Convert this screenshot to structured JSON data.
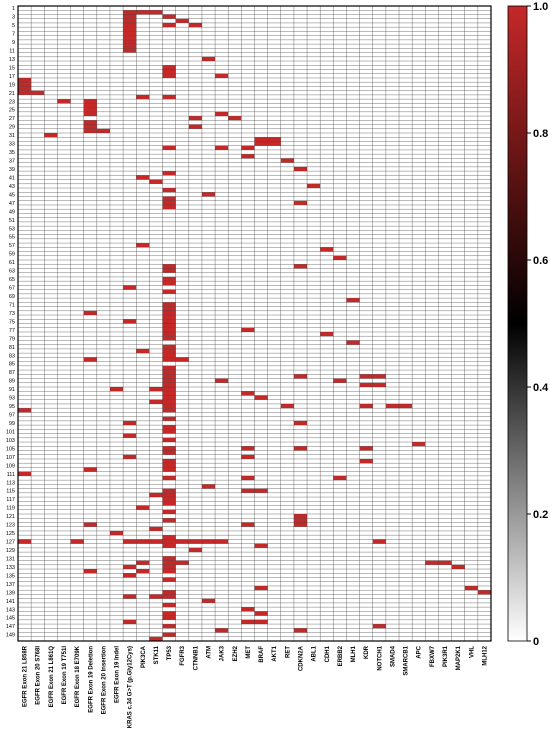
{
  "chart_data": {
    "type": "heatmap",
    "title": "",
    "xlabel": "",
    "ylabel": "",
    "columns": [
      "EGFR Exon 21 L858R",
      "EGFR Exon 20 S768I",
      "EGFR Exon 21 L861Q",
      "EGFR Exon 19 T751I",
      "EGFR Exon 18 E709K",
      "EGFR Exon 19 Deletion",
      "EGFR Exon 20 Insertion",
      "EGFR Exon 19 Indel",
      "KRAS c.34 G>T (p.Gly12Cys)",
      "PIK3CA",
      "STK11",
      "TP53",
      "FGFR3",
      "CTNNB1",
      "ATM",
      "JAK3",
      "EZH2",
      "MET",
      "BRAF",
      "AKT1",
      "RET",
      "CDKN2A",
      "ABL1",
      "CDH1",
      "ERBB2",
      "MLH1",
      "KDR",
      "NOTCH1",
      "SMAD4",
      "SMARCB1",
      "APC",
      "FBXW7",
      "PIK3R1",
      "MAP2K1",
      "VHL",
      "MLH12"
    ],
    "row_count": 150,
    "y_tick_step": 2,
    "value_range": [
      0,
      1
    ],
    "colorbar": {
      "ticks": [
        0,
        0.2,
        0.4,
        0.6,
        0.8,
        1.0
      ],
      "tick_labels": [
        "0",
        "0.2",
        "0.4",
        "0.6",
        "0.8",
        "1.0"
      ],
      "colors": [
        "#ffffff",
        "#000000",
        "#c62828"
      ]
    },
    "legend_position": "right",
    "grid": true,
    "mutations": [
      [
        1,
        8
      ],
      [
        1,
        9
      ],
      [
        1,
        10
      ],
      [
        2,
        8
      ],
      [
        2,
        11
      ],
      [
        3,
        8
      ],
      [
        3,
        12
      ],
      [
        4,
        8
      ],
      [
        4,
        11
      ],
      [
        4,
        13
      ],
      [
        5,
        8
      ],
      [
        6,
        8
      ],
      [
        7,
        8
      ],
      [
        8,
        8
      ],
      [
        9,
        8
      ],
      [
        10,
        8
      ],
      [
        12,
        14
      ],
      [
        14,
        11
      ],
      [
        15,
        11
      ],
      [
        16,
        11
      ],
      [
        16,
        15
      ],
      [
        17,
        0
      ],
      [
        18,
        0
      ],
      [
        19,
        0
      ],
      [
        20,
        0
      ],
      [
        20,
        1
      ],
      [
        21,
        11
      ],
      [
        21,
        9
      ],
      [
        22,
        3
      ],
      [
        22,
        5
      ],
      [
        23,
        5
      ],
      [
        24,
        5
      ],
      [
        25,
        5
      ],
      [
        25,
        15
      ],
      [
        26,
        13
      ],
      [
        26,
        16
      ],
      [
        27,
        5
      ],
      [
        28,
        5
      ],
      [
        28,
        13
      ],
      [
        29,
        5
      ],
      [
        29,
        6
      ],
      [
        30,
        2
      ],
      [
        31,
        18
      ],
      [
        31,
        19
      ],
      [
        32,
        18
      ],
      [
        32,
        19
      ],
      [
        33,
        11
      ],
      [
        33,
        15
      ],
      [
        33,
        17
      ],
      [
        35,
        17
      ],
      [
        36,
        20
      ],
      [
        38,
        21
      ],
      [
        39,
        11
      ],
      [
        40,
        9
      ],
      [
        41,
        10
      ],
      [
        42,
        22
      ],
      [
        43,
        11
      ],
      [
        44,
        14
      ],
      [
        45,
        11
      ],
      [
        46,
        11
      ],
      [
        46,
        21
      ],
      [
        47,
        11
      ],
      [
        56,
        9
      ],
      [
        57,
        23
      ],
      [
        59,
        24
      ],
      [
        61,
        11
      ],
      [
        61,
        21
      ],
      [
        62,
        11
      ],
      [
        64,
        11
      ],
      [
        65,
        11
      ],
      [
        66,
        8
      ],
      [
        67,
        11
      ],
      [
        69,
        25
      ],
      [
        70,
        11
      ],
      [
        71,
        11
      ],
      [
        72,
        5
      ],
      [
        72,
        11
      ],
      [
        73,
        11
      ],
      [
        74,
        8
      ],
      [
        74,
        11
      ],
      [
        75,
        11
      ],
      [
        76,
        17
      ],
      [
        76,
        11
      ],
      [
        77,
        23
      ],
      [
        77,
        11
      ],
      [
        78,
        11
      ],
      [
        79,
        25
      ],
      [
        80,
        11
      ],
      [
        81,
        9
      ],
      [
        81,
        11
      ],
      [
        82,
        11
      ],
      [
        83,
        5
      ],
      [
        83,
        11
      ],
      [
        83,
        12
      ],
      [
        85,
        11
      ],
      [
        86,
        11
      ],
      [
        87,
        11
      ],
      [
        87,
        21
      ],
      [
        87,
        26
      ],
      [
        87,
        27
      ],
      [
        88,
        11
      ],
      [
        88,
        15
      ],
      [
        88,
        24
      ],
      [
        89,
        11
      ],
      [
        89,
        26
      ],
      [
        89,
        27
      ],
      [
        90,
        7
      ],
      [
        90,
        10
      ],
      [
        90,
        11
      ],
      [
        91,
        11
      ],
      [
        91,
        17
      ],
      [
        92,
        11
      ],
      [
        92,
        18
      ],
      [
        93,
        10
      ],
      [
        93,
        11
      ],
      [
        94,
        11
      ],
      [
        94,
        20
      ],
      [
        94,
        26
      ],
      [
        94,
        28
      ],
      [
        94,
        29
      ],
      [
        95,
        0
      ],
      [
        95,
        11
      ],
      [
        97,
        11
      ],
      [
        98,
        8
      ],
      [
        98,
        21
      ],
      [
        99,
        11
      ],
      [
        100,
        11
      ],
      [
        101,
        8
      ],
      [
        102,
        11
      ],
      [
        103,
        30
      ],
      [
        104,
        11
      ],
      [
        104,
        17
      ],
      [
        104,
        21
      ],
      [
        104,
        26
      ],
      [
        105,
        11
      ],
      [
        106,
        8
      ],
      [
        106,
        17
      ],
      [
        107,
        11
      ],
      [
        107,
        26
      ],
      [
        108,
        11
      ],
      [
        109,
        5
      ],
      [
        109,
        11
      ],
      [
        110,
        0
      ],
      [
        111,
        11
      ],
      [
        111,
        17
      ],
      [
        111,
        24
      ],
      [
        113,
        14
      ],
      [
        114,
        11
      ],
      [
        114,
        17
      ],
      [
        114,
        18
      ],
      [
        115,
        10
      ],
      [
        115,
        11
      ],
      [
        116,
        11
      ],
      [
        117,
        11
      ],
      [
        118,
        9
      ],
      [
        119,
        11
      ],
      [
        120,
        21
      ],
      [
        121,
        11
      ],
      [
        121,
        21
      ],
      [
        122,
        5
      ],
      [
        122,
        17
      ],
      [
        122,
        21
      ],
      [
        123,
        10
      ],
      [
        124,
        7
      ],
      [
        125,
        11
      ],
      [
        126,
        0
      ],
      [
        126,
        4
      ],
      [
        126,
        8
      ],
      [
        126,
        9
      ],
      [
        126,
        10
      ],
      [
        126,
        11
      ],
      [
        126,
        12
      ],
      [
        126,
        13
      ],
      [
        126,
        14
      ],
      [
        126,
        15
      ],
      [
        126,
        27
      ],
      [
        127,
        11
      ],
      [
        127,
        18
      ],
      [
        128,
        13
      ],
      [
        130,
        11
      ],
      [
        131,
        11
      ],
      [
        131,
        9
      ],
      [
        131,
        12
      ],
      [
        131,
        31
      ],
      [
        131,
        32
      ],
      [
        132,
        8
      ],
      [
        132,
        11
      ],
      [
        132,
        33
      ],
      [
        133,
        5
      ],
      [
        133,
        9
      ],
      [
        133,
        11
      ],
      [
        134,
        8
      ],
      [
        135,
        11
      ],
      [
        137,
        18
      ],
      [
        137,
        34
      ],
      [
        138,
        11
      ],
      [
        138,
        35
      ],
      [
        139,
        8
      ],
      [
        139,
        10
      ],
      [
        139,
        11
      ],
      [
        140,
        14
      ],
      [
        141,
        11
      ],
      [
        142,
        17
      ],
      [
        143,
        11
      ],
      [
        143,
        18
      ],
      [
        144,
        11
      ],
      [
        145,
        8
      ],
      [
        145,
        17
      ],
      [
        145,
        18
      ],
      [
        146,
        11
      ],
      [
        146,
        27
      ],
      [
        147,
        15
      ],
      [
        147,
        21
      ],
      [
        148,
        11
      ],
      [
        149,
        10
      ]
    ]
  }
}
